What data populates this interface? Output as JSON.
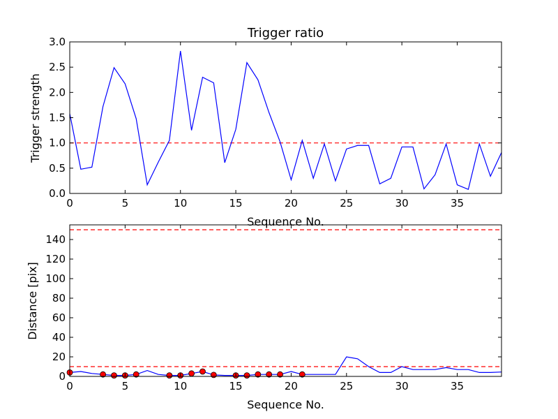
{
  "chart_data": [
    {
      "type": "line",
      "title": "Trigger ratio",
      "xlabel": "Sequence No.",
      "ylabel": "Trigger strength",
      "xlim": [
        0,
        39
      ],
      "ylim": [
        0,
        3.0
      ],
      "xticks": [
        0,
        5,
        10,
        15,
        20,
        25,
        30,
        35
      ],
      "xtick_labels": [
        "0",
        "5",
        "10",
        "15",
        "20",
        "25",
        "30",
        "35"
      ],
      "yticks": [
        0,
        0.5,
        1.0,
        1.5,
        2.0,
        2.5,
        3.0
      ],
      "ytick_labels": [
        "0.0",
        "0.5",
        "1.0",
        "1.5",
        "2.0",
        "2.5",
        "3.0"
      ],
      "grid": false,
      "series": [
        {
          "color": "#0000ff",
          "x": [
            0,
            1,
            2,
            3,
            4,
            5,
            6,
            7,
            8,
            9,
            10,
            11,
            12,
            13,
            14,
            15,
            16,
            17,
            18,
            19,
            20,
            21,
            22,
            23,
            24,
            25,
            26,
            27,
            28,
            29,
            30,
            31,
            32,
            33,
            34,
            35,
            36,
            37,
            38,
            39
          ],
          "y": [
            1.58,
            0.48,
            0.52,
            1.72,
            2.49,
            2.17,
            1.48,
            0.17,
            0.62,
            1.05,
            2.82,
            1.25,
            2.3,
            2.19,
            0.61,
            1.27,
            2.59,
            2.25,
            1.6,
            1.02,
            0.27,
            1.05,
            0.3,
            0.98,
            0.25,
            0.88,
            0.95,
            0.95,
            0.19,
            0.3,
            0.92,
            0.92,
            0.09,
            0.37,
            0.98,
            0.17,
            0.08,
            0.98,
            0.34,
            0.81
          ]
        }
      ],
      "hlines": [
        {
          "y": 1.0,
          "color": "#ff0000",
          "style": "dashed"
        }
      ]
    },
    {
      "type": "line",
      "title": "",
      "xlabel": "Sequence No.",
      "ylabel": "Distance [pix]",
      "xlim": [
        0,
        39
      ],
      "ylim": [
        0,
        155
      ],
      "xticks": [
        0,
        5,
        10,
        15,
        20,
        25,
        30,
        35
      ],
      "xtick_labels": [
        "0",
        "5",
        "10",
        "15",
        "20",
        "25",
        "30",
        "35"
      ],
      "yticks": [
        0,
        20,
        40,
        60,
        80,
        100,
        120,
        140
      ],
      "ytick_labels": [
        "0",
        "20",
        "40",
        "60",
        "80",
        "100",
        "120",
        "140"
      ],
      "grid": false,
      "series": [
        {
          "color": "#0000ff",
          "x": [
            0,
            1,
            2,
            3,
            4,
            5,
            6,
            7,
            8,
            9,
            10,
            11,
            12,
            13,
            14,
            15,
            16,
            17,
            18,
            19,
            20,
            21,
            22,
            23,
            24,
            25,
            26,
            27,
            28,
            29,
            30,
            31,
            32,
            33,
            34,
            35,
            36,
            37,
            38,
            39
          ],
          "y": [
            4,
            5,
            3,
            2,
            1,
            1,
            2,
            6,
            2,
            1,
            1,
            3,
            5,
            1.5,
            1,
            1,
            1,
            2,
            2,
            2,
            5,
            2,
            2,
            2,
            2,
            20,
            18,
            10,
            4,
            4,
            10,
            7,
            7,
            7,
            9,
            7,
            7,
            4,
            4,
            4.5
          ]
        }
      ],
      "markers": {
        "color": "#ff0000",
        "x": [
          0,
          3,
          4,
          5,
          6,
          9,
          10,
          11,
          12,
          13,
          15,
          16,
          17,
          18,
          19,
          21
        ],
        "y": [
          4,
          2,
          1,
          1,
          2,
          1,
          1,
          3,
          5,
          1.5,
          1,
          1,
          2,
          2,
          2,
          2
        ]
      },
      "hlines": [
        {
          "y": 150,
          "color": "#ff0000",
          "style": "dashed"
        },
        {
          "y": 10,
          "color": "#ff0000",
          "style": "dashed"
        }
      ]
    }
  ]
}
